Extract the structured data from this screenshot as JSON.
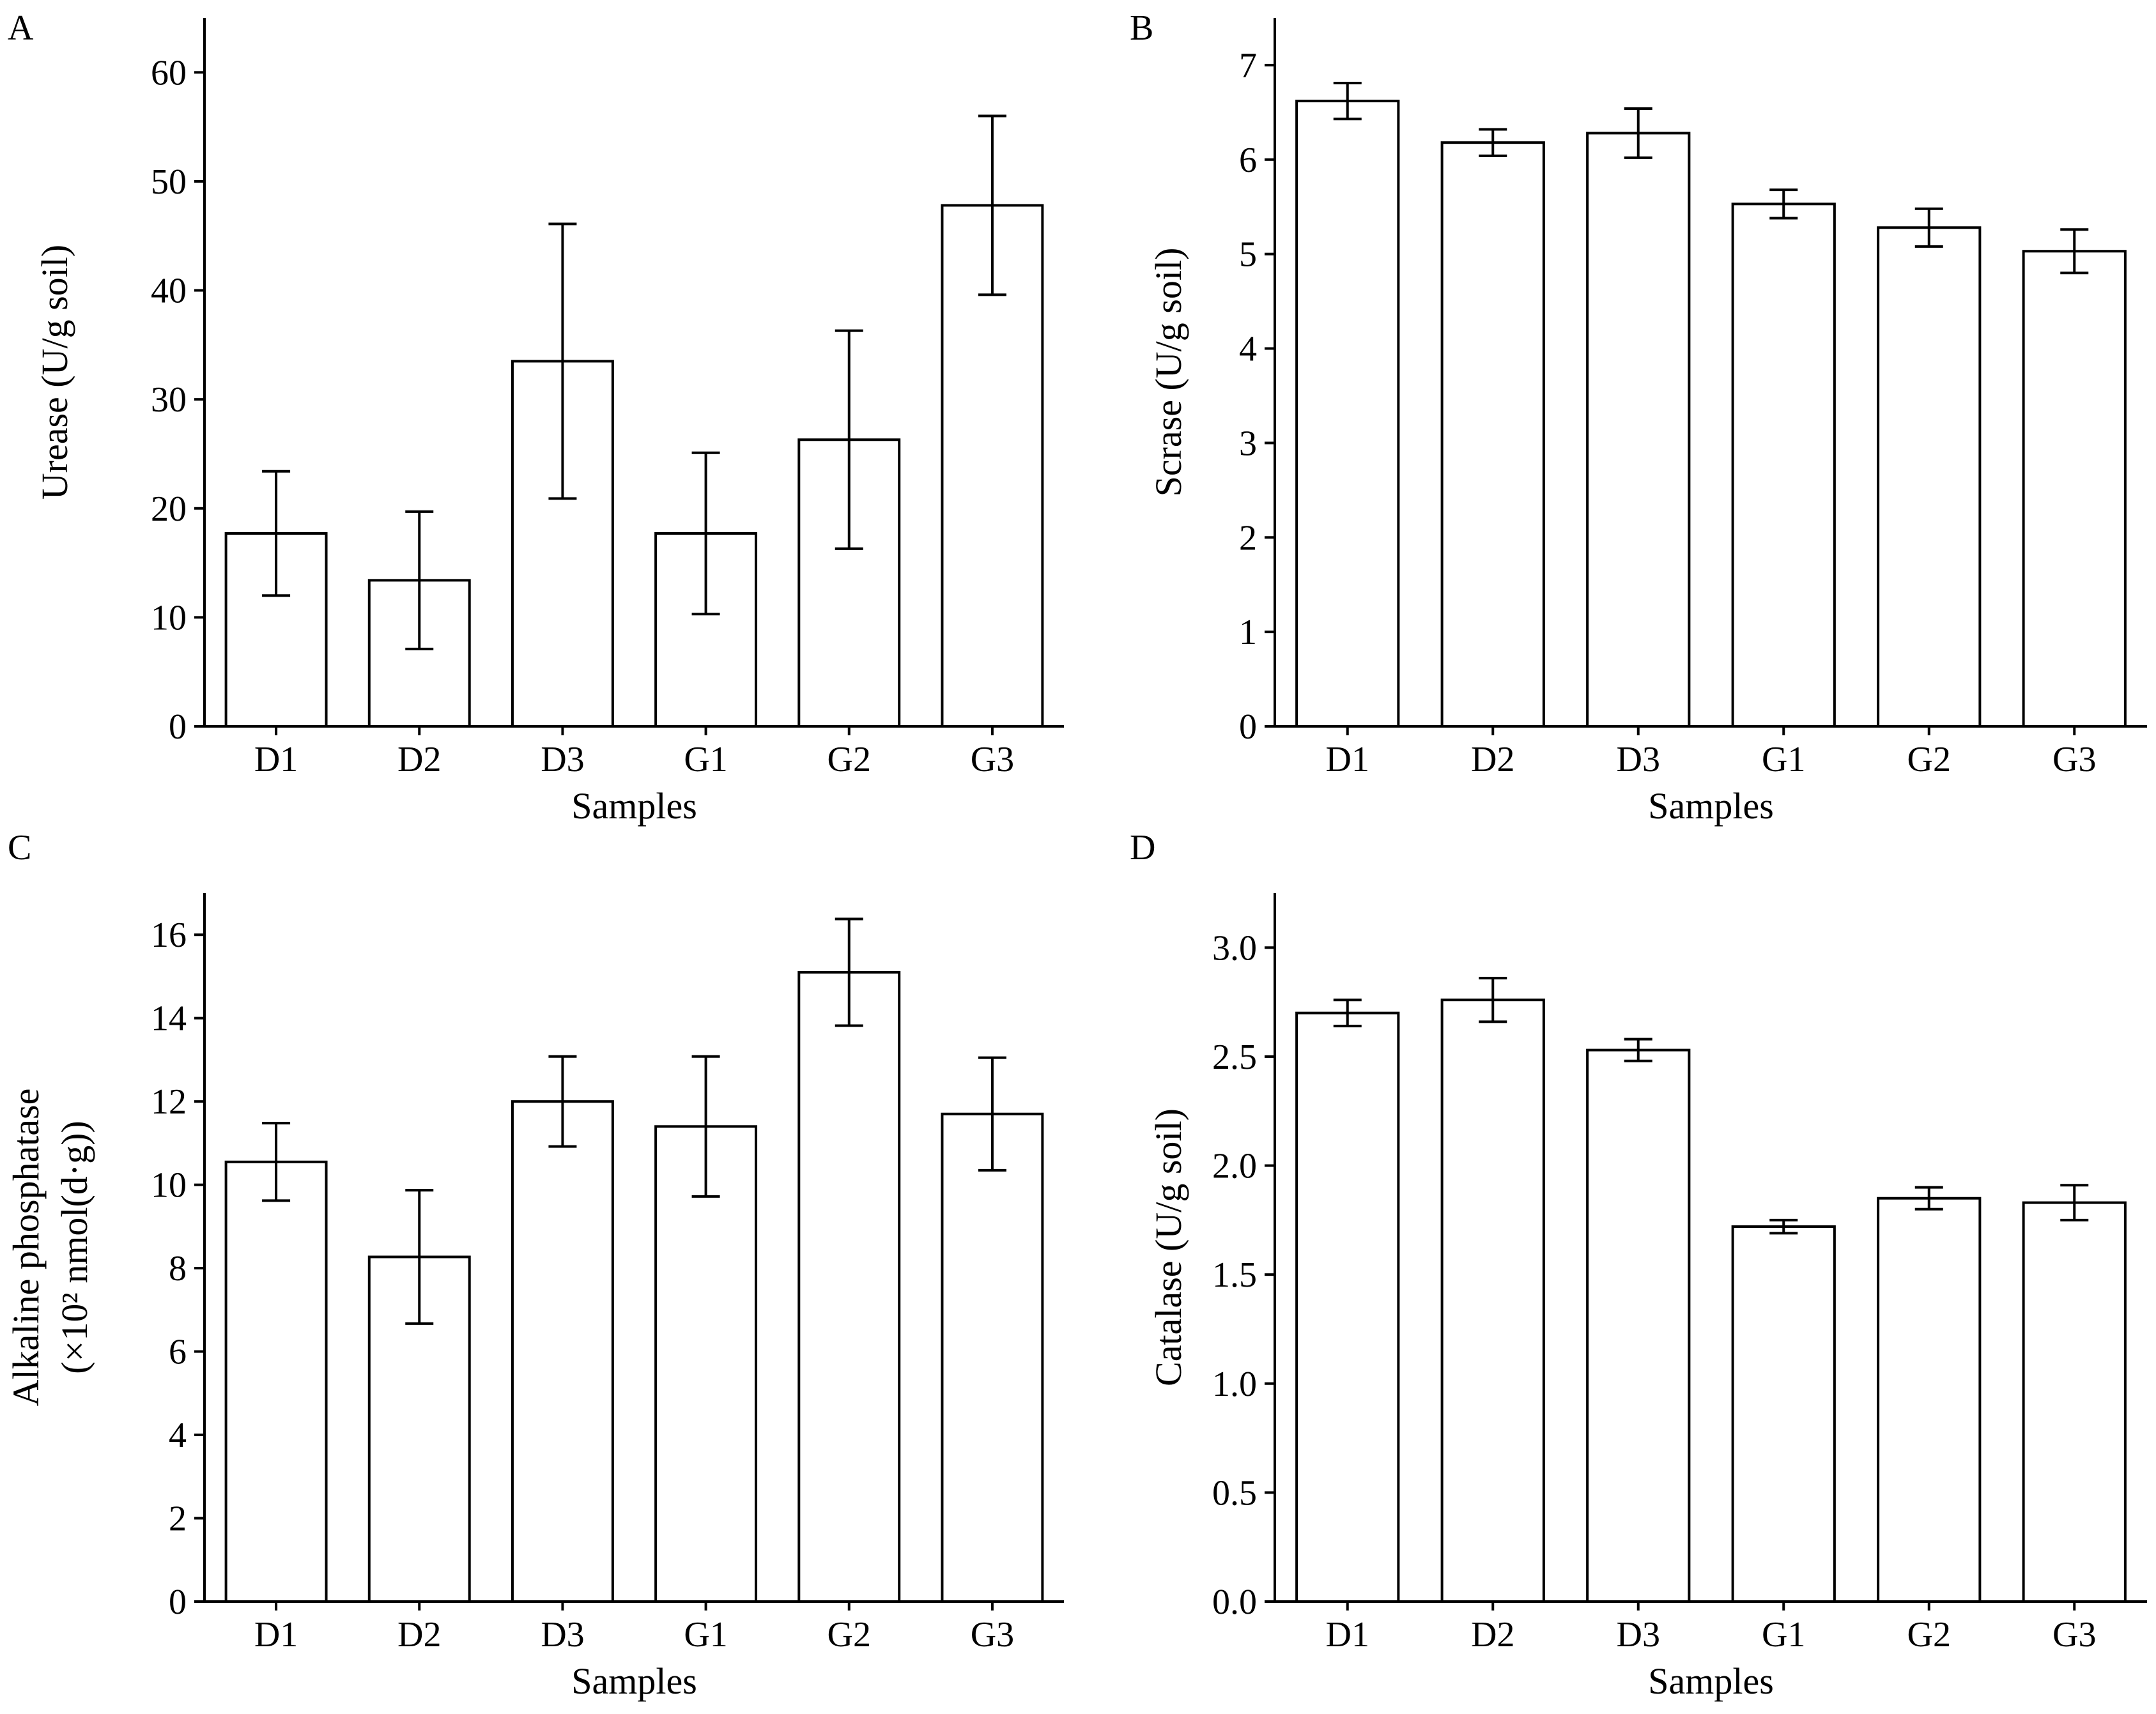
{
  "chart_data": [
    {
      "panel": "A",
      "type": "bar",
      "title": "",
      "xlabel": "Samples",
      "ylabel": [
        "Urease (U/g soil)"
      ],
      "categories": [
        "D1",
        "D2",
        "D3",
        "G1",
        "G2",
        "G3"
      ],
      "values": [
        17.7,
        13.4,
        33.5,
        17.7,
        26.3,
        47.8
      ],
      "errors": [
        5.7,
        6.3,
        12.6,
        7.4,
        10.0,
        8.2
      ],
      "ylim": [
        0,
        65
      ],
      "yticks": [
        0,
        10,
        20,
        30,
        40,
        50,
        60
      ],
      "ytick_labels": [
        "0",
        "10",
        "20",
        "30",
        "40",
        "50",
        "60"
      ],
      "grid": false,
      "bar_color": "#ffffff",
      "edge_color": "#000000"
    },
    {
      "panel": "B",
      "type": "bar",
      "title": "",
      "xlabel": "Samples",
      "ylabel": [
        "Scrase (U/g soil)"
      ],
      "categories": [
        "D1",
        "D2",
        "D3",
        "G1",
        "G2",
        "G3"
      ],
      "values": [
        6.62,
        6.18,
        6.28,
        5.53,
        5.28,
        5.03
      ],
      "errors": [
        0.19,
        0.14,
        0.26,
        0.15,
        0.2,
        0.23
      ],
      "ylim": [
        0,
        7.5
      ],
      "yticks": [
        0,
        1,
        2,
        3,
        4,
        5,
        6,
        7
      ],
      "ytick_labels": [
        "0",
        "1",
        "2",
        "3",
        "4",
        "5",
        "6",
        "7"
      ],
      "grid": false,
      "bar_color": "#ffffff",
      "edge_color": "#000000"
    },
    {
      "panel": "C",
      "type": "bar",
      "title": "",
      "xlabel": "Samples",
      "ylabel": [
        "Alkaline phosphatase",
        "(×10² nmol(d·g))"
      ],
      "categories": [
        "D1",
        "D2",
        "D3",
        "G1",
        "G2",
        "G3"
      ],
      "values": [
        10.55,
        8.27,
        12.0,
        11.4,
        15.1,
        11.7
      ],
      "errors": [
        0.93,
        1.6,
        1.08,
        1.68,
        1.28,
        1.35
      ],
      "ylim": [
        0,
        17
      ],
      "yticks": [
        0,
        2,
        4,
        6,
        8,
        10,
        12,
        14,
        16
      ],
      "ytick_labels": [
        "0",
        "2",
        "4",
        "6",
        "8",
        "10",
        "12",
        "14",
        "16"
      ],
      "grid": false,
      "bar_color": "#ffffff",
      "edge_color": "#000000"
    },
    {
      "panel": "D",
      "type": "bar",
      "title": "",
      "xlabel": "Samples",
      "ylabel": [
        "Catalase (U/g soil)"
      ],
      "categories": [
        "D1",
        "D2",
        "D3",
        "G1",
        "G2",
        "G3"
      ],
      "values": [
        2.7,
        2.76,
        2.53,
        1.72,
        1.85,
        1.83
      ],
      "errors": [
        0.06,
        0.1,
        0.05,
        0.03,
        0.05,
        0.08
      ],
      "ylim": [
        0,
        3.25
      ],
      "yticks": [
        0,
        0.5,
        1.0,
        1.5,
        2.0,
        2.5,
        3.0
      ],
      "ytick_labels": [
        "0.0",
        "0.5",
        "1.0",
        "1.5",
        "2.0",
        "2.5",
        "3.0"
      ],
      "grid": false,
      "bar_color": "#ffffff",
      "edge_color": "#000000"
    }
  ]
}
